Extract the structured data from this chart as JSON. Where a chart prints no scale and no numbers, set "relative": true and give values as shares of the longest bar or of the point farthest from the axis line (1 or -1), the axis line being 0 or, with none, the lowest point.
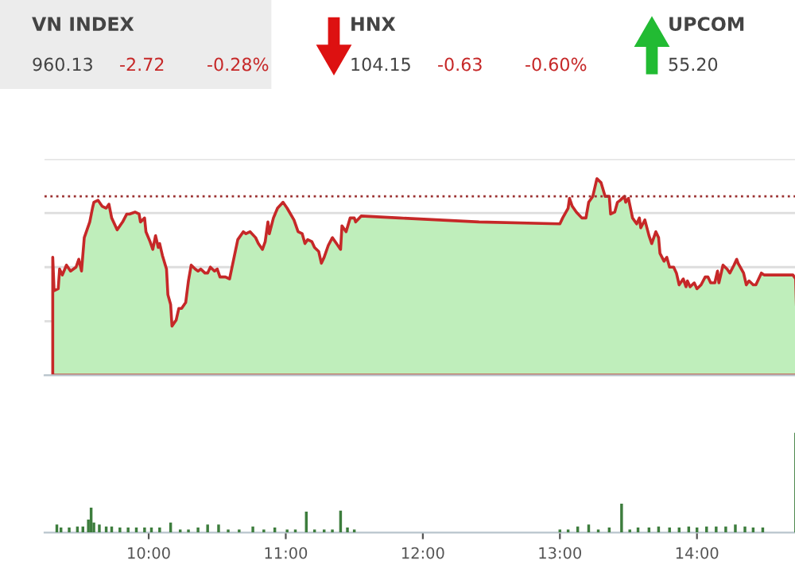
{
  "chart_data": [
    {
      "type": "other",
      "annotations": [
        "VN INDEX",
        "960.13",
        "-2.72",
        "-0.28%",
        "HNX",
        "104.15",
        "-0.63",
        "-0.60%",
        "UPCOM",
        "55.20"
      ]
    },
    {
      "type": "area",
      "relative": true,
      "grid": "y",
      "tick_labels": false,
      "xlim": [
        9.24,
        14.75
      ],
      "ref_lines": [
        {
          "axis": "y",
          "value": 0.91,
          "label": null,
          "color": "#9a3030",
          "line_style": "dotted"
        }
      ],
      "series": [
        {
          "color": "#bfeebb",
          "x": [
            9.3,
            9.31,
            9.34,
            9.35,
            9.37,
            9.4,
            9.43,
            9.47,
            9.49,
            9.51,
            9.53,
            9.57,
            9.59,
            9.6,
            9.63,
            9.64,
            9.66,
            9.69,
            9.71,
            9.73,
            9.77,
            9.79,
            9.81,
            9.84,
            9.86,
            9.9,
            9.93,
            9.94,
            9.97,
            9.98,
            10.01,
            10.03,
            10.05,
            10.07,
            10.08,
            10.1,
            10.13,
            10.14,
            10.16,
            10.17,
            10.2,
            10.22,
            10.24,
            10.27,
            10.29,
            10.31,
            10.34,
            10.36,
            10.38,
            10.41,
            10.43,
            10.45,
            10.48,
            10.5,
            10.52,
            10.56,
            10.59,
            10.62,
            10.65,
            10.69,
            10.71,
            10.74,
            10.78,
            10.8,
            10.83,
            10.85,
            10.87,
            10.88,
            10.91,
            10.94,
            10.98,
            11.01,
            11.06,
            11.09,
            11.12,
            11.14,
            11.16,
            11.19,
            11.21,
            11.24,
            11.26,
            11.28,
            11.31,
            11.34,
            11.37,
            11.4,
            11.41,
            11.44,
            11.47,
            11.5,
            11.51,
            11.55,
            11.83,
            12.41,
            13.0,
            13.02,
            13.06,
            13.07,
            13.09,
            13.12,
            13.16,
            13.19,
            13.21,
            13.24,
            13.27,
            13.3,
            13.33,
            13.36,
            13.37,
            13.4,
            13.42,
            13.44,
            13.47,
            13.48,
            13.5,
            13.53,
            13.56,
            13.58,
            13.59,
            13.62,
            13.65,
            13.67,
            13.7,
            13.72,
            13.73,
            13.76,
            13.78,
            13.8,
            13.83,
            13.85,
            13.87,
            13.9,
            13.92,
            13.93,
            13.95,
            13.98,
            14.0,
            14.03,
            14.06,
            14.08,
            14.1,
            14.13,
            14.15,
            14.16,
            14.19,
            14.22,
            14.24,
            14.27,
            14.29,
            14.3,
            14.34,
            14.36,
            14.38,
            14.41,
            14.43,
            14.47,
            14.49,
            14.7,
            14.72,
            14.73
          ],
          "values": [
            0.6,
            0.43,
            0.44,
            0.54,
            0.51,
            0.56,
            0.53,
            0.55,
            0.59,
            0.53,
            0.7,
            0.78,
            0.85,
            0.88,
            0.89,
            0.88,
            0.86,
            0.85,
            0.87,
            0.8,
            0.74,
            0.76,
            0.78,
            0.82,
            0.82,
            0.83,
            0.82,
            0.78,
            0.8,
            0.73,
            0.68,
            0.64,
            0.71,
            0.65,
            0.67,
            0.61,
            0.54,
            0.41,
            0.36,
            0.25,
            0.28,
            0.34,
            0.34,
            0.37,
            0.48,
            0.56,
            0.54,
            0.53,
            0.54,
            0.52,
            0.52,
            0.55,
            0.53,
            0.54,
            0.5,
            0.5,
            0.49,
            0.59,
            0.69,
            0.73,
            0.72,
            0.73,
            0.7,
            0.67,
            0.64,
            0.68,
            0.78,
            0.72,
            0.8,
            0.85,
            0.88,
            0.85,
            0.79,
            0.73,
            0.72,
            0.67,
            0.69,
            0.68,
            0.65,
            0.63,
            0.57,
            0.6,
            0.66,
            0.7,
            0.67,
            0.64,
            0.76,
            0.73,
            0.8,
            0.8,
            0.78,
            0.81,
            0.8,
            0.78,
            0.77,
            0.8,
            0.85,
            0.9,
            0.86,
            0.83,
            0.8,
            0.8,
            0.88,
            0.91,
            1.0,
            0.98,
            0.91,
            0.91,
            0.82,
            0.83,
            0.88,
            0.89,
            0.91,
            0.88,
            0.9,
            0.8,
            0.77,
            0.8,
            0.75,
            0.79,
            0.71,
            0.67,
            0.73,
            0.7,
            0.62,
            0.58,
            0.6,
            0.55,
            0.55,
            0.52,
            0.46,
            0.49,
            0.45,
            0.48,
            0.45,
            0.47,
            0.44,
            0.46,
            0.5,
            0.5,
            0.47,
            0.47,
            0.53,
            0.47,
            0.56,
            0.54,
            0.52,
            0.56,
            0.59,
            0.57,
            0.52,
            0.46,
            0.48,
            0.46,
            0.46,
            0.52,
            0.51,
            0.51,
            0.49,
            0.24
          ]
        }
      ]
    },
    {
      "type": "bar",
      "relative": true,
      "tick_labels": "x",
      "xlim": [
        9.24,
        14.75
      ],
      "xticks": [
        {
          "value": 10,
          "label": "10:00"
        },
        {
          "value": 11,
          "label": "11:00"
        },
        {
          "value": 12,
          "label": "12:00"
        },
        {
          "value": 13,
          "label": "13:00"
        },
        {
          "value": 14,
          "label": "14:00"
        }
      ],
      "series": [
        {
          "color": "#3d7d3d",
          "x": [
            9.33,
            9.36,
            9.42,
            9.48,
            9.52,
            9.56,
            9.58,
            9.6,
            9.64,
            9.69,
            9.73,
            9.79,
            9.85,
            9.91,
            9.97,
            10.02,
            10.08,
            10.16,
            10.23,
            10.29,
            10.36,
            10.43,
            10.51,
            10.58,
            10.66,
            10.76,
            10.84,
            10.92,
            11.01,
            11.07,
            11.15,
            11.21,
            11.28,
            11.34,
            11.4,
            11.45,
            11.5,
            13.0,
            13.06,
            13.13,
            13.21,
            13.28,
            13.36,
            13.45,
            13.51,
            13.57,
            13.65,
            13.72,
            13.8,
            13.87,
            13.94,
            14.0,
            14.07,
            14.14,
            14.21,
            14.28,
            14.35,
            14.41,
            14.48,
            14.72
          ],
          "values": [
            0.08,
            0.05,
            0.05,
            0.06,
            0.06,
            0.13,
            0.25,
            0.1,
            0.08,
            0.06,
            0.06,
            0.05,
            0.05,
            0.05,
            0.05,
            0.05,
            0.05,
            0.1,
            0.03,
            0.03,
            0.05,
            0.08,
            0.08,
            0.03,
            0.03,
            0.06,
            0.03,
            0.05,
            0.03,
            0.03,
            0.21,
            0.03,
            0.03,
            0.03,
            0.22,
            0.05,
            0.03,
            0.03,
            0.03,
            0.06,
            0.08,
            0.03,
            0.05,
            0.29,
            0.03,
            0.05,
            0.05,
            0.06,
            0.05,
            0.05,
            0.06,
            0.05,
            0.06,
            0.06,
            0.06,
            0.08,
            0.06,
            0.05,
            0.05,
            1.0
          ]
        }
      ]
    }
  ]
}
